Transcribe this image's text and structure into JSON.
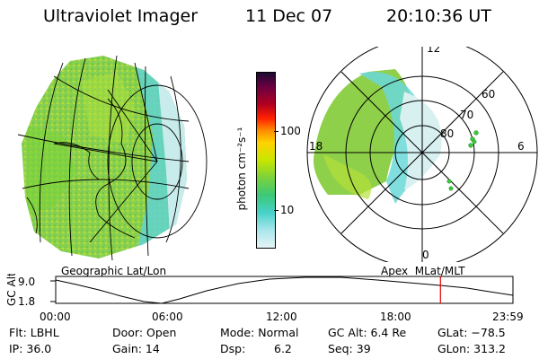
{
  "header": {
    "title": "Ultraviolet Imager",
    "date": "11 Dec 07",
    "time": "20:10:36 UT"
  },
  "colorbar": {
    "unit_label": "photon cm⁻²s⁻¹",
    "tick_labels": [
      "100",
      "10"
    ],
    "scale": "log",
    "colors": [
      "#1a0a30",
      "#6a0040",
      "#b00020",
      "#ff2000",
      "#ff8c00",
      "#ffd200",
      "#c8e600",
      "#7ad23c",
      "#3cc878",
      "#46d2c8",
      "#aae6ec",
      "#e6f4f4"
    ]
  },
  "geo_panel": {
    "label": "Geographic Lat/Lon",
    "colors": {
      "aurora_green": "#8ad040",
      "aurora_cyan": "#6ad8d8",
      "aurora_pale": "#c4eaea"
    }
  },
  "polar_panel": {
    "label": "Apex  MLat/MLT",
    "mlt_labels": [
      "12",
      "18",
      "6",
      "0"
    ],
    "lat_labels": [
      "60",
      "70",
      "80"
    ]
  },
  "timeline": {
    "y_axis_label": "GC Alt",
    "y_tick_labels": [
      "9.0",
      "1.8"
    ],
    "x_tick_labels": [
      "00:00",
      "06:00",
      "12:00",
      "18:00",
      "23:59"
    ],
    "marker_time_hours": 20.18,
    "marker_color": "#e00000"
  },
  "info": {
    "flt": "Flt: LBHL",
    "ip": "IP: 36.0",
    "door": "Door: Open",
    "gain": "Gain: 14",
    "mode": "Mode: Normal",
    "dsp_label": "Dsp:",
    "dsp_value": "6.2",
    "gc_alt": "GC Alt: 6.4 Re",
    "seq": "Seq: 39",
    "glat": "GLat: −78.5",
    "glon": "GLon: 313.2"
  }
}
